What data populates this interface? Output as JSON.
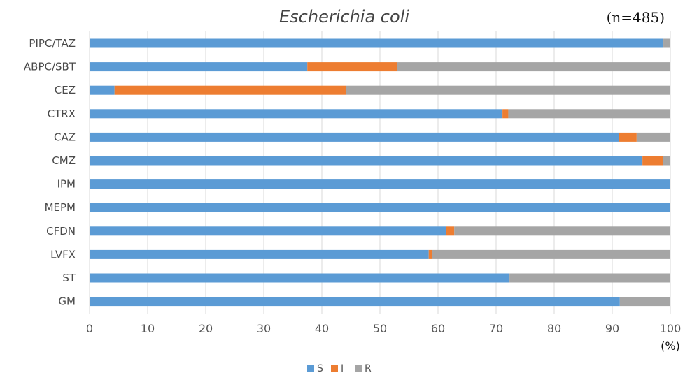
{
  "chart_data": {
    "type": "bar",
    "orientation": "horizontal",
    "stacked": true,
    "title": "Escherichia coli",
    "sample_size": "(n=485)",
    "xlabel": "(%)",
    "ylabel": "",
    "xlim": [
      0,
      100
    ],
    "xticks": [
      0,
      10,
      20,
      30,
      40,
      50,
      60,
      70,
      80,
      90,
      100
    ],
    "grid": true,
    "legend_position": "bottom",
    "categories": [
      "PIPC/TAZ",
      "ABPC/SBT",
      "CEZ",
      "CTRX",
      "CAZ",
      "CMZ",
      "IPM",
      "MEPM",
      "CFDN",
      "LVFX",
      "ST",
      "GM"
    ],
    "series": [
      {
        "name": "S",
        "color": "#5b9bd5",
        "values": [
          98.8,
          37.5,
          4.3,
          71.1,
          91.1,
          95.2,
          100,
          100,
          61.4,
          58.4,
          72.3,
          91.3
        ]
      },
      {
        "name": "I",
        "color": "#ed7d31",
        "values": [
          0,
          15.5,
          39.9,
          1.0,
          3.1,
          3.5,
          0,
          0,
          1.4,
          0.6,
          0,
          0
        ]
      },
      {
        "name": "R",
        "color": "#a5a5a5",
        "values": [
          1.2,
          47.0,
          55.8,
          27.9,
          5.8,
          1.3,
          0,
          0,
          37.2,
          41.0,
          27.7,
          8.7
        ]
      }
    ]
  }
}
